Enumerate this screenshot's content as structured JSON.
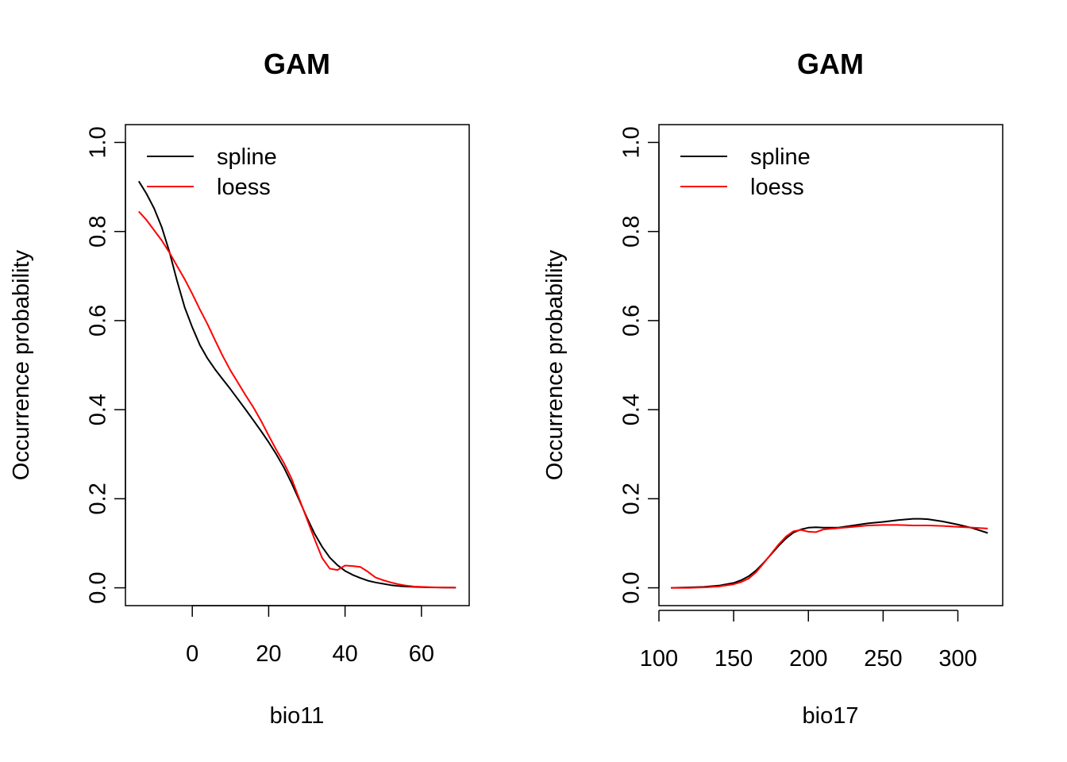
{
  "chart_data": [
    {
      "type": "line",
      "title": "GAM",
      "xlabel": "bio11",
      "ylabel": "Occurrence probability",
      "xlim": [
        -17.5,
        72.5
      ],
      "ylim": [
        -0.04,
        1.04
      ],
      "xticks": [
        0,
        20,
        40,
        60
      ],
      "yticks": [
        0.0,
        0.2,
        0.4,
        0.6,
        0.8,
        1.0
      ],
      "xtick_labels": [
        "0",
        "20",
        "40",
        "60"
      ],
      "ytick_labels": [
        "0.0",
        "0.2",
        "0.4",
        "0.6",
        "0.8",
        "1.0"
      ],
      "grid": false,
      "legend_position": "top-left",
      "series": [
        {
          "name": "spline",
          "color": "#000000",
          "x": [
            -14,
            -12,
            -10,
            -8,
            -6,
            -4,
            -2,
            0,
            2,
            4,
            6,
            8,
            10,
            12,
            14,
            16,
            18,
            20,
            22,
            24,
            26,
            28,
            30,
            32,
            34,
            36,
            38,
            40,
            42,
            44,
            46,
            48,
            50,
            52,
            54,
            56,
            58,
            60,
            62,
            64,
            66,
            68,
            69
          ],
          "y": [
            0.913,
            0.885,
            0.852,
            0.81,
            0.755,
            0.69,
            0.63,
            0.585,
            0.545,
            0.515,
            0.49,
            0.468,
            0.446,
            0.423,
            0.4,
            0.376,
            0.352,
            0.327,
            0.3,
            0.27,
            0.235,
            0.197,
            0.158,
            0.122,
            0.092,
            0.068,
            0.051,
            0.038,
            0.029,
            0.022,
            0.016,
            0.012,
            0.009,
            0.006,
            0.004,
            0.003,
            0.002,
            0.0015,
            0.001,
            0.0008,
            0.0006,
            0.0004,
            0.0003
          ]
        },
        {
          "name": "loess",
          "color": "#ff0000",
          "x": [
            -14,
            -12,
            -10,
            -8,
            -6,
            -4,
            -2,
            0,
            2,
            4,
            6,
            8,
            10,
            12,
            14,
            16,
            18,
            20,
            22,
            24,
            26,
            28,
            30,
            32,
            34,
            36,
            38,
            40,
            42,
            44,
            46,
            48,
            50,
            52,
            54,
            56,
            58,
            60,
            62,
            64,
            66,
            68,
            69
          ],
          "y": [
            0.845,
            0.826,
            0.803,
            0.78,
            0.753,
            0.723,
            0.693,
            0.66,
            0.625,
            0.592,
            0.555,
            0.52,
            0.488,
            0.46,
            0.432,
            0.405,
            0.375,
            0.342,
            0.31,
            0.28,
            0.245,
            0.2,
            0.155,
            0.11,
            0.067,
            0.043,
            0.04,
            0.05,
            0.049,
            0.047,
            0.036,
            0.023,
            0.017,
            0.012,
            0.008,
            0.005,
            0.003,
            0.002,
            0.0015,
            0.001,
            0.0008,
            0.0006,
            0.0005
          ]
        }
      ]
    },
    {
      "type": "line",
      "title": "GAM",
      "xlabel": "bio17",
      "ylabel": "Occurrence probability",
      "xlim": [
        100,
        330
      ],
      "ylim": [
        -0.04,
        1.04
      ],
      "xticks": [
        100,
        150,
        200,
        250,
        300
      ],
      "yticks": [
        0.0,
        0.2,
        0.4,
        0.6,
        0.8,
        1.0
      ],
      "xtick_labels": [
        "100",
        "150",
        "200",
        "250",
        "300"
      ],
      "ytick_labels": [
        "0.0",
        "0.2",
        "0.4",
        "0.6",
        "0.8",
        "1.0"
      ],
      "grid": false,
      "legend_position": "top-left",
      "series": [
        {
          "name": "spline",
          "color": "#000000",
          "x": [
            108,
            120,
            130,
            140,
            150,
            155,
            160,
            165,
            170,
            175,
            180,
            185,
            190,
            195,
            200,
            205,
            210,
            220,
            230,
            240,
            250,
            260,
            270,
            275,
            280,
            290,
            300,
            310,
            320
          ],
          "y": [
            0.0,
            0.001,
            0.002,
            0.005,
            0.011,
            0.017,
            0.026,
            0.039,
            0.056,
            0.075,
            0.094,
            0.111,
            0.124,
            0.131,
            0.135,
            0.136,
            0.135,
            0.135,
            0.14,
            0.145,
            0.148,
            0.152,
            0.155,
            0.155,
            0.154,
            0.149,
            0.142,
            0.134,
            0.123
          ]
        },
        {
          "name": "loess",
          "color": "#ff0000",
          "x": [
            108,
            120,
            130,
            140,
            150,
            155,
            160,
            165,
            170,
            175,
            180,
            185,
            190,
            195,
            200,
            205,
            210,
            220,
            230,
            240,
            250,
            260,
            270,
            275,
            280,
            290,
            300,
            310,
            320
          ],
          "y": [
            0.0,
            0.0,
            0.001,
            0.003,
            0.008,
            0.013,
            0.021,
            0.035,
            0.055,
            0.076,
            0.097,
            0.115,
            0.127,
            0.13,
            0.126,
            0.125,
            0.131,
            0.134,
            0.137,
            0.14,
            0.141,
            0.141,
            0.14,
            0.14,
            0.14,
            0.139,
            0.137,
            0.135,
            0.133
          ]
        }
      ]
    }
  ]
}
